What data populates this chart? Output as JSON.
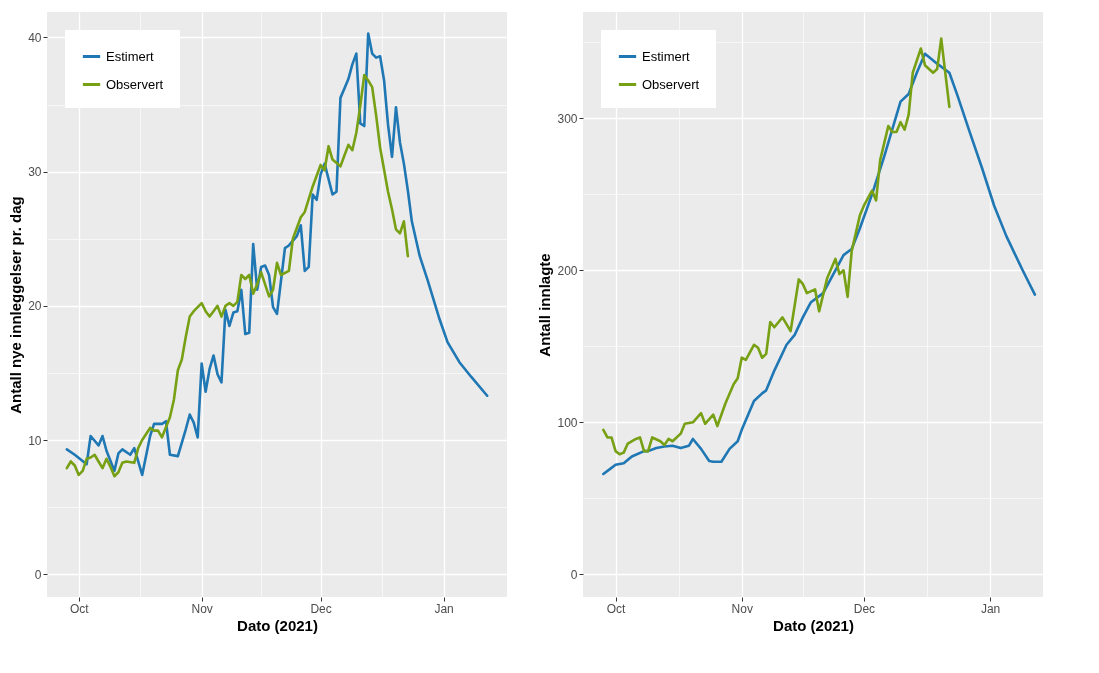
{
  "chart_data": [
    {
      "type": "line",
      "xlabel": "Dato (2021)",
      "ylabel": "Antall nye innleggelser pr. dag",
      "xlim": [
        "2021-09-23",
        "2022-01-17"
      ],
      "ylim": [
        -1.7,
        41.9
      ],
      "xticks": [
        {
          "value": "2021-10-01",
          "label": "Oct"
        },
        {
          "value": "2021-10-16T12:00",
          "label": null
        },
        {
          "value": "2021-11-01",
          "label": "Nov"
        },
        {
          "value": "2021-11-16",
          "label": null
        },
        {
          "value": "2021-12-01",
          "label": "Dec"
        },
        {
          "value": "2021-12-16T12:00",
          "label": null
        },
        {
          "value": "2022-01-01",
          "label": "Jan"
        }
      ],
      "yticks": [
        0,
        {
          "value": 5,
          "label": null
        },
        10,
        {
          "value": 15,
          "label": null
        },
        20,
        {
          "value": 25,
          "label": null
        },
        30,
        {
          "value": 35,
          "label": null
        },
        40
      ],
      "grid": true,
      "legend": "top left",
      "line_style": "solid",
      "series": [
        {
          "name": "Estimert",
          "color": "#1f77b4",
          "x": [
            "2021-09-28",
            "2021-09-30",
            "2021-10-03",
            "2021-10-04",
            "2021-10-06",
            "2021-10-07",
            "2021-10-08",
            "2021-10-10",
            "2021-10-11",
            "2021-10-12",
            "2021-10-14",
            "2021-10-15",
            "2021-10-16",
            "2021-10-17",
            "2021-10-19",
            "2021-10-20",
            "2021-10-22",
            "2021-10-23",
            "2021-10-24",
            "2021-10-26",
            "2021-10-28",
            "2021-10-29",
            "2021-10-30",
            "2021-10-31",
            "2021-11-01",
            "2021-11-02",
            "2021-11-03",
            "2021-11-04",
            "2021-11-05",
            "2021-11-06",
            "2021-11-07",
            "2021-11-08",
            "2021-11-09",
            "2021-11-10",
            "2021-11-11",
            "2021-11-12",
            "2021-11-13",
            "2021-11-14",
            "2021-11-15",
            "2021-11-16",
            "2021-11-17",
            "2021-11-18",
            "2021-11-19",
            "2021-11-20",
            "2021-11-22",
            "2021-11-23",
            "2021-11-25",
            "2021-11-26",
            "2021-11-27",
            "2021-11-28",
            "2021-11-29",
            "2021-11-30",
            "2021-12-01",
            "2021-12-02",
            "2021-12-04",
            "2021-12-05",
            "2021-12-06",
            "2021-12-07",
            "2021-12-08",
            "2021-12-09",
            "2021-12-10",
            "2021-12-11",
            "2021-12-12",
            "2021-12-13",
            "2021-12-14",
            "2021-12-15",
            "2021-12-16",
            "2021-12-17",
            "2021-12-18",
            "2021-12-19",
            "2021-12-20",
            "2021-12-21",
            "2021-12-22",
            "2021-12-23",
            "2021-12-24",
            "2021-12-26",
            "2021-12-28",
            "2021-12-31",
            "2022-01-02",
            "2022-01-05",
            "2022-01-08",
            "2022-01-12"
          ],
          "values": [
            9.3,
            8.9,
            8.2,
            10.3,
            9.6,
            10.3,
            9.2,
            7.7,
            9.0,
            9.3,
            8.9,
            9.4,
            8.4,
            7.4,
            10.3,
            11.2,
            11.2,
            11.4,
            8.9,
            8.8,
            10.8,
            11.9,
            11.3,
            10.2,
            15.7,
            13.6,
            15.3,
            16.3,
            14.9,
            14.3,
            19.7,
            18.5,
            19.5,
            19.6,
            21.2,
            17.9,
            18.0,
            24.6,
            21.2,
            22.9,
            23.0,
            22.3,
            19.9,
            19.4,
            24.3,
            24.5,
            25.2,
            26.0,
            22.6,
            22.9,
            28.3,
            27.9,
            29.8,
            30.6,
            28.3,
            28.5,
            35.5,
            36.2,
            36.9,
            38.0,
            38.8,
            33.6,
            33.4,
            40.3,
            38.8,
            38.5,
            38.6,
            36.8,
            33.5,
            31.1,
            34.8,
            32.2,
            30.6,
            28.6,
            26.3,
            23.7,
            21.9,
            19.0,
            17.3,
            15.8,
            14.7,
            13.3
          ]
        },
        {
          "name": "Observert",
          "color": "#78a014",
          "x": [
            "2021-09-28",
            "2021-09-29",
            "2021-09-30",
            "2021-10-01",
            "2021-10-02",
            "2021-10-03",
            "2021-10-04",
            "2021-10-05",
            "2021-10-06",
            "2021-10-07",
            "2021-10-08",
            "2021-10-09",
            "2021-10-10",
            "2021-10-11",
            "2021-10-12",
            "2021-10-13",
            "2021-10-15",
            "2021-10-16",
            "2021-10-17",
            "2021-10-19",
            "2021-10-20",
            "2021-10-21",
            "2021-10-22",
            "2021-10-24",
            "2021-10-25",
            "2021-10-26",
            "2021-10-27",
            "2021-10-28",
            "2021-10-29",
            "2021-10-30",
            "2021-11-01",
            "2021-11-02",
            "2021-11-03",
            "2021-11-04",
            "2021-11-05",
            "2021-11-06",
            "2021-11-07",
            "2021-11-08",
            "2021-11-09",
            "2021-11-10",
            "2021-11-11",
            "2021-11-12",
            "2021-11-13",
            "2021-11-14",
            "2021-11-15",
            "2021-11-16",
            "2021-11-18",
            "2021-11-19",
            "2021-11-20",
            "2021-11-21",
            "2021-11-23",
            "2021-11-24",
            "2021-11-26",
            "2021-11-27",
            "2021-11-29",
            "2021-12-01",
            "2021-12-02",
            "2021-12-03",
            "2021-12-04",
            "2021-12-06",
            "2021-12-07",
            "2021-12-08",
            "2021-12-09",
            "2021-12-10",
            "2021-12-11",
            "2021-12-12",
            "2021-12-13",
            "2021-12-14",
            "2021-12-15",
            "2021-12-16",
            "2021-12-18",
            "2021-12-19",
            "2021-12-20",
            "2021-12-21",
            "2021-12-22",
            "2021-12-23"
          ],
          "values": [
            7.9,
            8.4,
            8.1,
            7.4,
            7.7,
            8.6,
            8.7,
            8.9,
            8.4,
            7.9,
            8.6,
            8.0,
            7.3,
            7.6,
            8.3,
            8.4,
            8.3,
            9.4,
            10.0,
            10.9,
            10.7,
            10.7,
            10.2,
            11.7,
            13.0,
            15.2,
            16.0,
            17.7,
            19.2,
            19.6,
            20.2,
            19.6,
            19.2,
            19.6,
            20.0,
            19.2,
            20.0,
            20.2,
            20.0,
            20.3,
            22.3,
            22.0,
            22.3,
            20.9,
            21.6,
            22.5,
            20.7,
            21.2,
            23.2,
            22.3,
            22.6,
            25.0,
            26.6,
            27.0,
            28.9,
            30.5,
            30.1,
            31.9,
            30.9,
            30.4,
            31.2,
            32.0,
            31.6,
            32.9,
            34.9,
            37.2,
            36.8,
            36.3,
            34.2,
            31.8,
            28.5,
            27.2,
            25.7,
            25.4,
            26.3,
            23.7
          ]
        }
      ]
    },
    {
      "type": "line",
      "xlabel": "Dato (2021)",
      "ylabel": "Antall innlagte",
      "xlim": [
        "2021-09-23",
        "2022-01-14"
      ],
      "ylim": [
        -15,
        370
      ],
      "xticks": [
        {
          "value": "2021-10-01",
          "label": "Oct"
        },
        {
          "value": "2021-10-16T12:00",
          "label": null
        },
        {
          "value": "2021-11-01",
          "label": "Nov"
        },
        {
          "value": "2021-11-16",
          "label": null
        },
        {
          "value": "2021-12-01",
          "label": "Dec"
        },
        {
          "value": "2021-12-16T12:00",
          "label": null
        },
        {
          "value": "2022-01-01",
          "label": "Jan"
        }
      ],
      "yticks": [
        0,
        {
          "value": 50,
          "label": null
        },
        100,
        {
          "value": 150,
          "label": null
        },
        200,
        {
          "value": 250,
          "label": null
        },
        300,
        {
          "value": 350,
          "label": null
        }
      ],
      "grid": true,
      "legend": "top left",
      "line_style": "solid",
      "series": [
        {
          "name": "Estimert",
          "color": "#1f77b4",
          "x": [
            "2021-09-28",
            "2021-09-30",
            "2021-10-01",
            "2021-10-03",
            "2021-10-05",
            "2021-10-08",
            "2021-10-09",
            "2021-10-11",
            "2021-10-13",
            "2021-10-15",
            "2021-10-17",
            "2021-10-19",
            "2021-10-20",
            "2021-10-22",
            "2021-10-24",
            "2021-10-25",
            "2021-10-27",
            "2021-10-29",
            "2021-10-31",
            "2021-11-01",
            "2021-11-04",
            "2021-11-06",
            "2021-11-07",
            "2021-11-09",
            "2021-11-12",
            "2021-11-14",
            "2021-11-16",
            "2021-11-18",
            "2021-11-21",
            "2021-11-26",
            "2021-11-28",
            "2021-11-30",
            "2021-12-03",
            "2021-12-06",
            "2021-12-10",
            "2021-12-12",
            "2021-12-14",
            "2021-12-16",
            "2021-12-19",
            "2021-12-22",
            "2021-12-24",
            "2021-12-27",
            "2021-12-30",
            "2022-01-02",
            "2022-01-05",
            "2022-01-09",
            "2022-01-12"
          ],
          "values": [
            66,
            70,
            72,
            73,
            77.5,
            81,
            81,
            83,
            84,
            84.5,
            83,
            84.5,
            89,
            82.5,
            74.5,
            74,
            74,
            82.5,
            87.5,
            95,
            114,
            119,
            121,
            134,
            151,
            157.5,
            169,
            179,
            185,
            210,
            214,
            227.5,
            250,
            275,
            311,
            316,
            330,
            342.5,
            336,
            330,
            315,
            291,
            267.5,
            242.5,
            222.5,
            200,
            184
          ]
        },
        {
          "name": "Observert",
          "color": "#78a014",
          "x": [
            "2021-09-28",
            "2021-09-29",
            "2021-09-30",
            "2021-10-01",
            "2021-10-02",
            "2021-10-03",
            "2021-10-04",
            "2021-10-06",
            "2021-10-07",
            "2021-10-08",
            "2021-10-09",
            "2021-10-10",
            "2021-10-12",
            "2021-10-13",
            "2021-10-14",
            "2021-10-15",
            "2021-10-17",
            "2021-10-18",
            "2021-10-20",
            "2021-10-22",
            "2021-10-23",
            "2021-10-25",
            "2021-10-26",
            "2021-10-28",
            "2021-10-30",
            "2021-10-31",
            "2021-11-01",
            "2021-11-02",
            "2021-11-04",
            "2021-11-05",
            "2021-11-06",
            "2021-11-07",
            "2021-11-08",
            "2021-11-09",
            "2021-11-11",
            "2021-11-13",
            "2021-11-15",
            "2021-11-16",
            "2021-11-17",
            "2021-11-19",
            "2021-11-20",
            "2021-11-22",
            "2021-11-24",
            "2021-11-25",
            "2021-11-26",
            "2021-11-27",
            "2021-11-28",
            "2021-11-30",
            "2021-12-01",
            "2021-12-03",
            "2021-12-04",
            "2021-12-05",
            "2021-12-07",
            "2021-12-08",
            "2021-12-09",
            "2021-12-10",
            "2021-12-11",
            "2021-12-12",
            "2021-12-13",
            "2021-12-15",
            "2021-12-16",
            "2021-12-18",
            "2021-12-19",
            "2021-12-20",
            "2021-12-21",
            "2021-12-22"
          ],
          "values": [
            95,
            90,
            90,
            81,
            79,
            80,
            86,
            89,
            90,
            81,
            81,
            90,
            87.5,
            85,
            89,
            87.5,
            92.5,
            99,
            100,
            106,
            99,
            105,
            97.5,
            112.5,
            125,
            129,
            142.5,
            141,
            151,
            149,
            142.5,
            145,
            166,
            162.5,
            169,
            160,
            194,
            191,
            185,
            187.5,
            173,
            195,
            207.5,
            197.5,
            200,
            182.5,
            212.5,
            236,
            242.5,
            252.5,
            246,
            272.5,
            295,
            291,
            291,
            297.5,
            292.5,
            302.5,
            330,
            346,
            335,
            330,
            332.5,
            352.5,
            330,
            307.5
          ]
        }
      ]
    }
  ]
}
